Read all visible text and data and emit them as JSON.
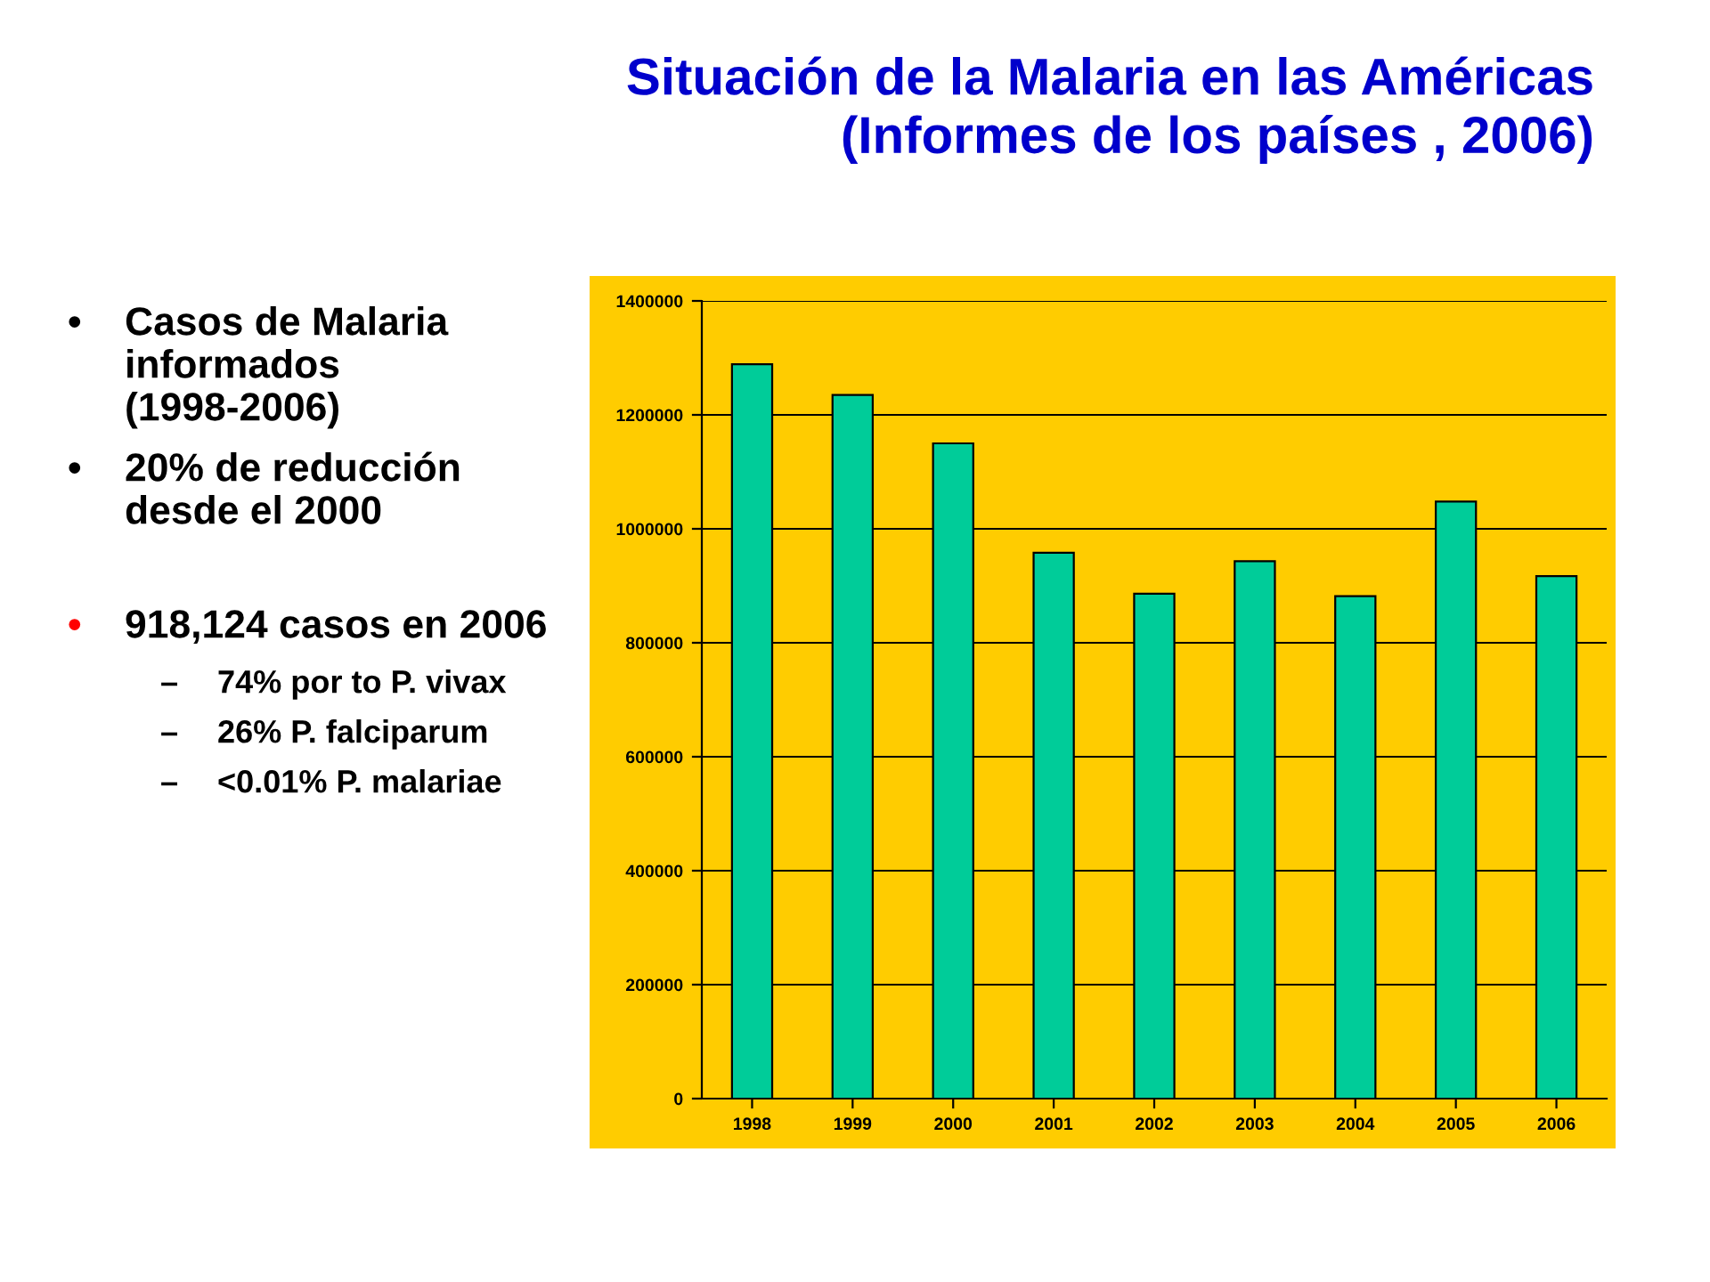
{
  "chart_data": {
    "type": "bar",
    "title": "Situación de la Malaria en las Américas\n(Informes de los países , 2006)",
    "categories": [
      "1998",
      "1999",
      "2000",
      "2001",
      "2002",
      "2003",
      "2004",
      "2005",
      "2006"
    ],
    "values": [
      1289000,
      1235000,
      1150000,
      958000,
      886000,
      943000,
      882000,
      1048000,
      917000
    ],
    "color": "#00cc99",
    "ylim": [
      0,
      1400000
    ],
    "yticks": [
      0,
      200000,
      400000,
      600000,
      800000,
      1000000,
      1200000,
      1400000
    ],
    "grid": "y",
    "annotations": [
      "• Casos de Malaria informados (1998-2006)",
      "• 20% de reducción desde el 2000",
      "• 918,124 casos en 2006",
      "– 74% por  to P. vivax",
      "– 26% P. falciparum",
      "– <0.01% P. malariae"
    ]
  }
}
